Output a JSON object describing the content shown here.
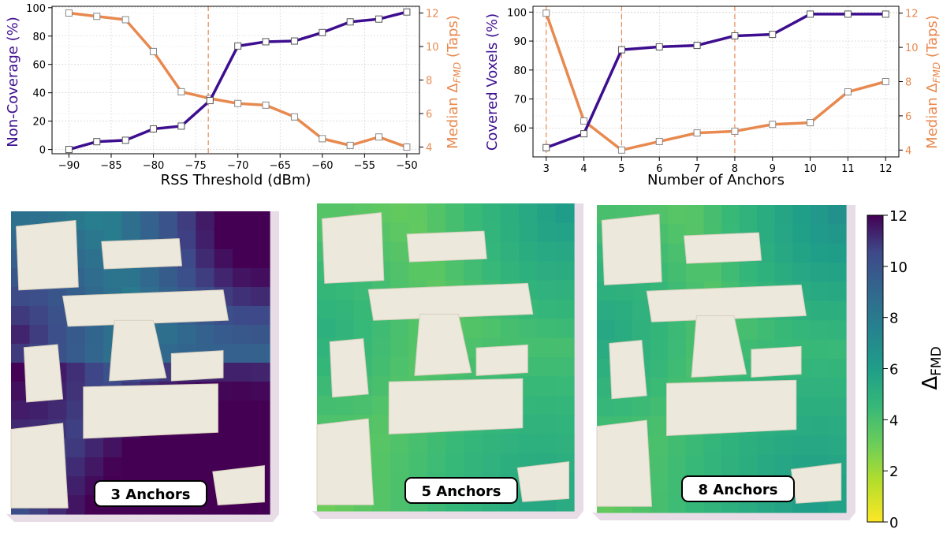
{
  "colors": {
    "primary": "#3d0e8f",
    "secondary": "#e8894f",
    "guide": "#e8894f",
    "grid": "#cccccc",
    "furniture": "#ede8dc",
    "slab": "#e8dce6"
  },
  "chart_data": [
    {
      "type": "line",
      "id": "rss",
      "xlabel": "RSS Threshold (dBm)",
      "ylabel": "Non-Coverage (%)",
      "y2label": "Median Δ",
      "y2label_sub": "FMD",
      "y2label_unit": " (Taps)",
      "xlim": [
        -92,
        -48.5
      ],
      "ylim": [
        -3,
        101
      ],
      "y2lim": [
        3.6,
        12.4
      ],
      "xticks": [
        -90,
        -85,
        -80,
        -75,
        -70,
        -65,
        -60,
        -55,
        -50
      ],
      "xtick_labels": [
        "−90",
        "−85",
        "−80",
        "−75",
        "−70",
        "−65",
        "−60",
        "−55",
        "−50"
      ],
      "yticks": [
        0,
        20,
        40,
        60,
        80,
        100
      ],
      "ytick_labels": [
        "0",
        "20",
        "40",
        "60",
        "80",
        "100"
      ],
      "y2ticks": [
        4,
        6,
        8,
        10,
        12
      ],
      "y2tick_labels": [
        "4",
        "6",
        "8",
        "10",
        "12"
      ],
      "guides": [
        -73.5
      ],
      "series": [
        {
          "name": "Non-Coverage",
          "axis": "left",
          "x": [
            -90,
            -86.7,
            -83.3,
            -80,
            -76.7,
            -73.3,
            -70,
            -66.7,
            -63.3,
            -60,
            -56.7,
            -53.3,
            -50
          ],
          "y": [
            0,
            5.5,
            6.5,
            14.5,
            16.5,
            34.5,
            73,
            76,
            76.5,
            82.5,
            90,
            92,
            97
          ]
        },
        {
          "name": "Median ΔFMD",
          "axis": "right",
          "x": [
            -90,
            -86.7,
            -83.3,
            -80,
            -76.7,
            -73.3,
            -70,
            -66.7,
            -63.3,
            -60,
            -56.7,
            -53.3,
            -50
          ],
          "y": [
            12,
            11.8,
            11.6,
            9.7,
            7.3,
            6.9,
            6.6,
            6.5,
            5.8,
            4.5,
            4.1,
            4.6,
            4
          ]
        }
      ]
    },
    {
      "type": "line",
      "id": "anchors",
      "xlabel": "Number of Anchors",
      "ylabel": "Covered Voxels (%)",
      "y2label": "Median Δ",
      "y2label_sub": "FMD",
      "y2label_unit": " (Taps)",
      "xlim": [
        2.65,
        12.35
      ],
      "ylim": [
        50,
        102
      ],
      "y2lim": [
        3.6,
        12.4
      ],
      "xticks": [
        3,
        4,
        5,
        6,
        7,
        8,
        9,
        10,
        11,
        12
      ],
      "xtick_labels": [
        "3",
        "4",
        "5",
        "6",
        "7",
        "8",
        "9",
        "10",
        "11",
        "12"
      ],
      "yticks": [
        60,
        70,
        80,
        90,
        100
      ],
      "ytick_labels": [
        "60",
        "70",
        "80",
        "90",
        "100"
      ],
      "y2ticks": [
        4,
        6,
        8,
        10,
        12
      ],
      "y2tick_labels": [
        "4",
        "6",
        "8",
        "10",
        "12"
      ],
      "guides": [
        3,
        5,
        8
      ],
      "series": [
        {
          "name": "Covered Voxels",
          "axis": "left",
          "x": [
            3,
            4,
            5,
            6,
            7,
            8,
            9,
            10,
            11,
            12
          ],
          "y": [
            53.2,
            58,
            87,
            88,
            88.5,
            91.8,
            92.3,
            99.3,
            99.3,
            99.3
          ]
        },
        {
          "name": "Median ΔFMD",
          "axis": "right",
          "x": [
            3,
            4,
            5,
            6,
            7,
            8,
            9,
            10,
            11,
            12
          ],
          "y": [
            12,
            5.7,
            4,
            4.5,
            5,
            5.1,
            5.5,
            5.6,
            7.4,
            8
          ]
        }
      ]
    },
    {
      "type": "heatmap",
      "id": "maps",
      "panels": [
        {
          "label": "3 Anchors",
          "value_scale": 1.15,
          "value_offset": 1.5
        },
        {
          "label": "5 Anchors",
          "value_scale": 0.55,
          "value_offset": 0.3
        },
        {
          "label": "8 Anchors",
          "value_scale": 0.62,
          "value_offset": 0.2
        }
      ],
      "colorbar": {
        "min": 0,
        "max": 12,
        "ticks": [
          0,
          2,
          4,
          6,
          8,
          10,
          12
        ],
        "tick_labels": [
          "0",
          "2",
          "4",
          "6",
          "8",
          "10",
          "12"
        ],
        "label": "Δ",
        "label_sub": "FMD"
      }
    }
  ]
}
